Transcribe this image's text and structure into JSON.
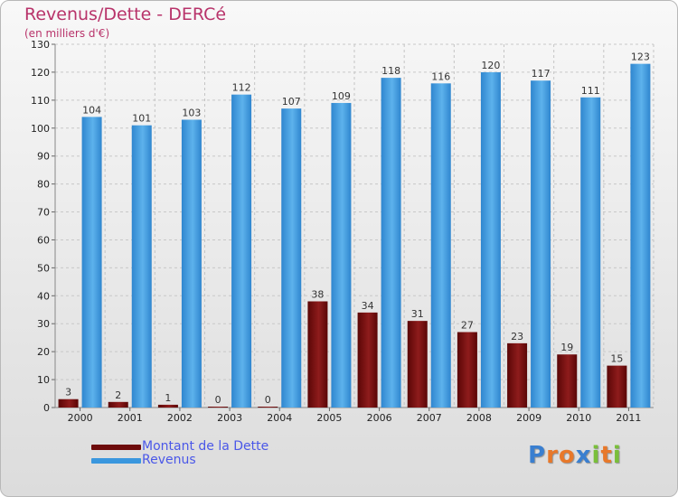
{
  "title": "Revenus/Dette - DERCé",
  "subtitle": "(en milliers d'€)",
  "logo": "Proxiti",
  "chart_data": {
    "type": "bar",
    "categories": [
      "2000",
      "2001",
      "2002",
      "2003",
      "2004",
      "2005",
      "2006",
      "2007",
      "2008",
      "2009",
      "2010",
      "2011"
    ],
    "series": [
      {
        "name": "Montant de la Dette",
        "color": "#7b0f0f",
        "values": [
          3,
          2,
          1,
          0,
          0,
          38,
          34,
          31,
          27,
          23,
          19,
          15
        ]
      },
      {
        "name": "Revenus",
        "color": "#3a97de",
        "values": [
          104,
          101,
          103,
          112,
          107,
          109,
          118,
          116,
          120,
          117,
          111,
          123
        ]
      }
    ],
    "ylim": [
      0,
      130
    ],
    "yticks": [
      0,
      10,
      20,
      30,
      40,
      50,
      60,
      70,
      80,
      90,
      100,
      110,
      120,
      130
    ],
    "grid": true,
    "legend_position": "bottom-left"
  }
}
